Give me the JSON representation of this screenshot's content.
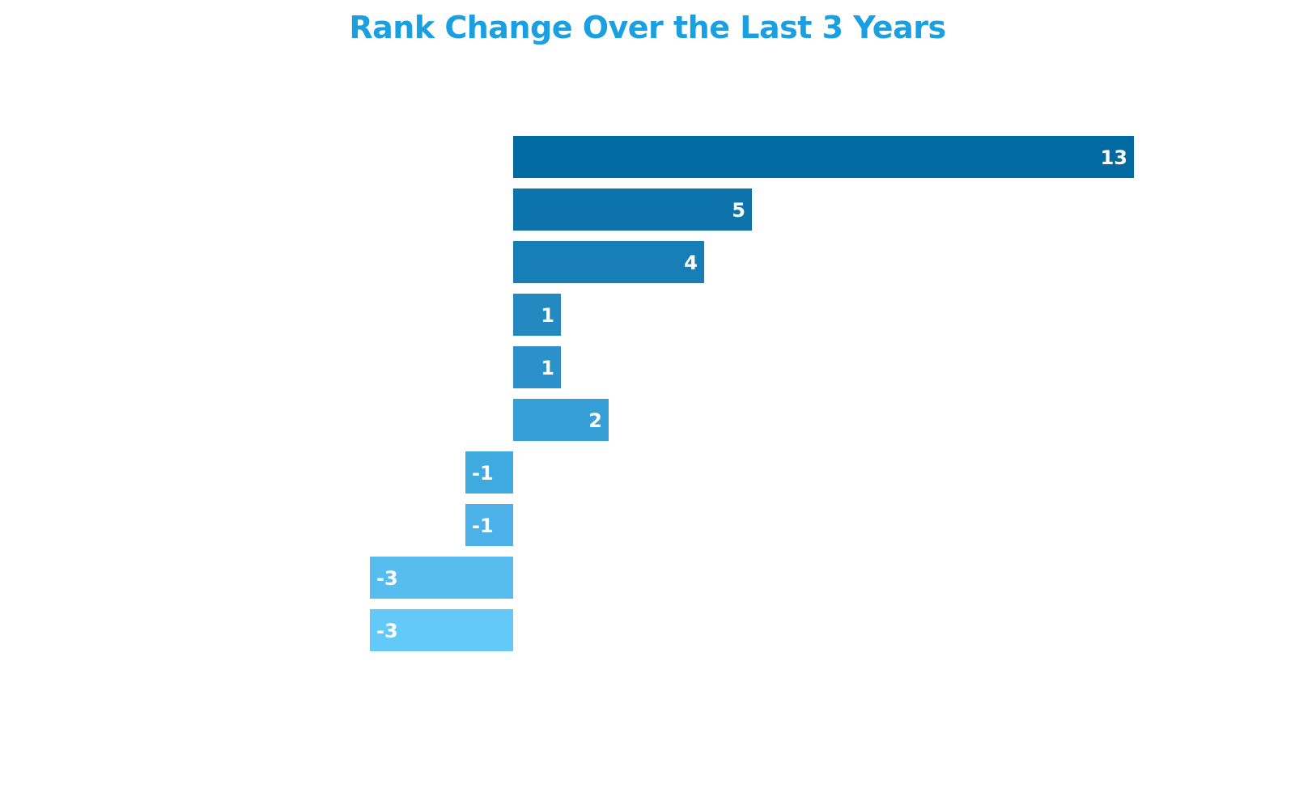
{
  "chart_data": {
    "type": "bar",
    "orientation": "horizontal",
    "title": "Rank Change Over the Last 3 Years",
    "values": [
      13,
      5,
      4,
      1,
      1,
      2,
      -1,
      -1,
      -3,
      -3
    ],
    "data_labels": [
      "13",
      "5",
      "4",
      "1",
      "1",
      "2",
      "-1",
      "-1",
      "-3",
      "-3"
    ],
    "colors": [
      "#016aa1",
      "#0c74ab",
      "#177fb5",
      "#2489c0",
      "#2c90ca",
      "#369fd6",
      "#3faadf",
      "#4bb1e8",
      "#56bdee",
      "#62c9f8"
    ],
    "xlim": [
      -3,
      13
    ],
    "grid": false,
    "legend": "none"
  },
  "colors": {
    "title": "#1a9fe0",
    "label": "#ffffff"
  }
}
